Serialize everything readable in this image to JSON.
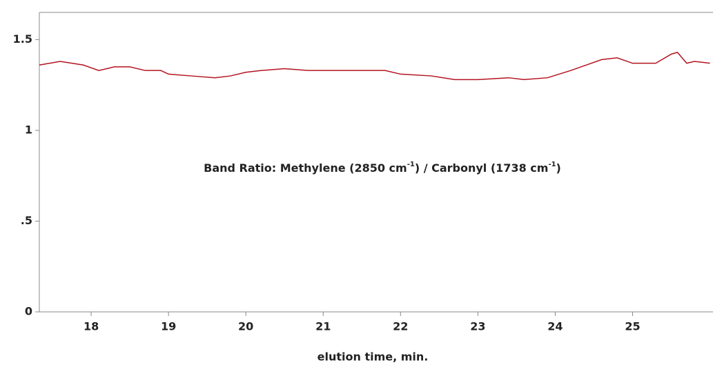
{
  "chart_data": {
    "type": "line",
    "annotation": [
      "Band Ratio:  Methylene (2850 cm",
      "-1",
      ") / Carbonyl (1738 cm",
      "-1",
      ")"
    ],
    "x_label": "elution time, min.",
    "x": [
      17.33,
      17.6,
      17.9,
      18.1,
      18.3,
      18.5,
      18.7,
      18.9,
      19.0,
      19.3,
      19.6,
      19.8,
      20.0,
      20.2,
      20.5,
      20.8,
      21.0,
      21.3,
      21.8,
      22.0,
      22.4,
      22.7,
      23.0,
      23.4,
      23.6,
      23.9,
      24.2,
      24.4,
      24.6,
      24.8,
      25.0,
      25.3,
      25.5,
      25.58,
      25.7,
      25.8,
      26.0
    ],
    "series": [
      {
        "color": "#b3121f",
        "values": [
          1.36,
          1.38,
          1.36,
          1.33,
          1.35,
          1.35,
          1.33,
          1.33,
          1.31,
          1.3,
          1.29,
          1.3,
          1.32,
          1.33,
          1.34,
          1.33,
          1.33,
          1.33,
          1.33,
          1.31,
          1.3,
          1.28,
          1.28,
          1.29,
          1.28,
          1.29,
          1.33,
          1.36,
          1.39,
          1.4,
          1.37,
          1.37,
          1.42,
          1.43,
          1.37,
          1.38,
          1.37
        ]
      }
    ],
    "xlim": [
      17.33,
      26.04
    ],
    "xticks": [
      18,
      19,
      20,
      21,
      22,
      23,
      24,
      25
    ],
    "ylim": [
      0,
      1.65
    ],
    "yticks": [
      0,
      {
        "value": 0.5,
        "label": ".5"
      },
      1,
      1.5
    ]
  }
}
